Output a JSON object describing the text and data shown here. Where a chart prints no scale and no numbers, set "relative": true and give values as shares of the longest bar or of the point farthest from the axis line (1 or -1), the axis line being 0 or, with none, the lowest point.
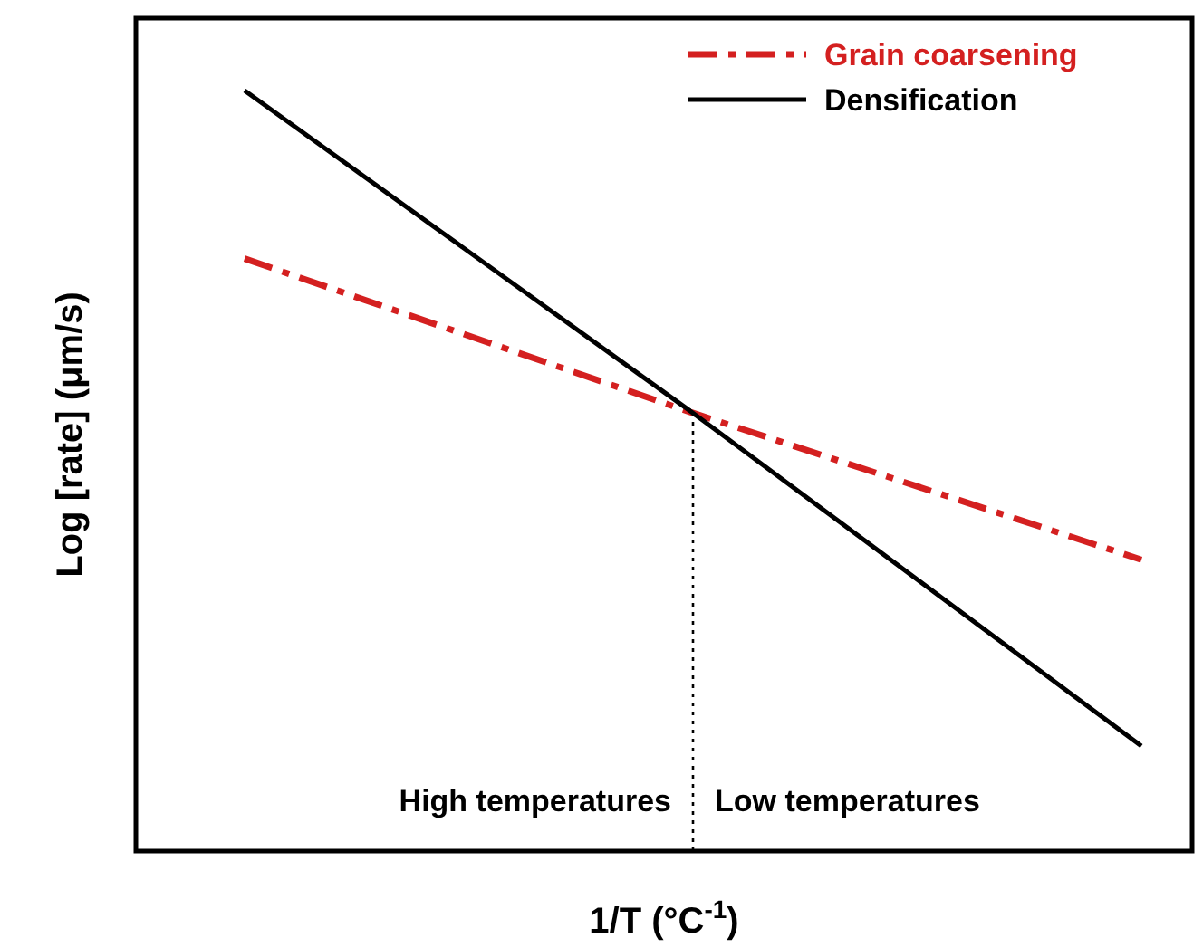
{
  "chart_data": {
    "type": "line",
    "relative": true,
    "xlabel": "1/T (°C$^{-1}$)",
    "ylabel": "Log [rate] (μm/s)",
    "categories": [
      null,
      null,
      null
    ],
    "series": [
      {
        "name": "Grain coarsening",
        "color": "#d42020",
        "values": [
          0.779,
          0.576,
          0.383
        ],
        "line_style": "dashed"
      },
      {
        "name": "Densification",
        "color": "#000000",
        "values": [
          1,
          0.576,
          0.138
        ],
        "line_style": "solid"
      }
    ],
    "annotations": [
      "High temperatures",
      "Low temperatures"
    ],
    "legend": "top right",
    "marker": "none"
  }
}
